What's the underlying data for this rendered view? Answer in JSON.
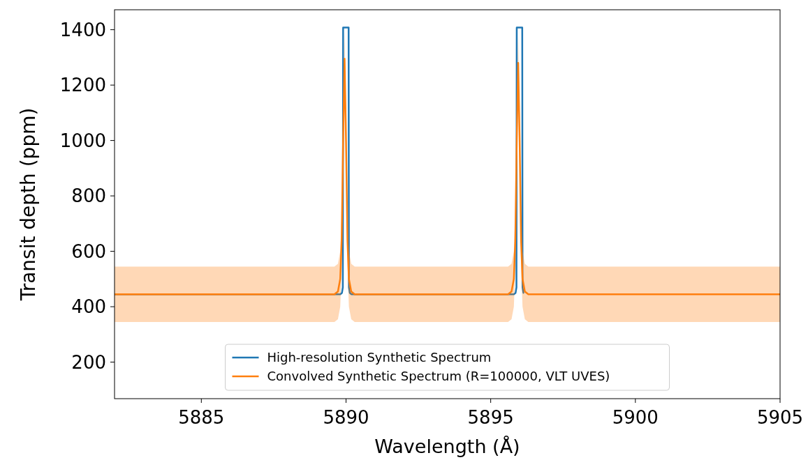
{
  "chart_data": {
    "type": "line",
    "xlabel": "Wavelength (Å)",
    "ylabel": "Transit depth (ppm)",
    "xlim": [
      5882,
      5905
    ],
    "ylim": [
      68,
      1472
    ],
    "xticks": [
      5885,
      5890,
      5895,
      5900,
      5905
    ],
    "yticks": [
      200,
      400,
      600,
      800,
      1000,
      1200,
      1400
    ],
    "grid": false,
    "legend": "bottom",
    "line_style": "solid",
    "series": [
      {
        "name": "High-resolution Synthetic Spectrum",
        "color": "#1f77b4",
        "x": [
          5882,
          5889.8,
          5889.86,
          5889.89,
          5889.9,
          5890.09,
          5890.1,
          5890.13,
          5890.19,
          5895.8,
          5895.86,
          5895.89,
          5895.9,
          5896.09,
          5896.1,
          5896.13
        ],
        "values": [
          445,
          445,
          450,
          470,
          1408,
          1408,
          470,
          450,
          445,
          445,
          450,
          470,
          1408,
          1408,
          470,
          450
        ]
      },
      {
        "name": "Convolved Synthetic Spectrum (R=100000, VLT UVES)",
        "color": "#ff7f0e",
        "x": [
          5882,
          5889.6,
          5889.72,
          5889.8,
          5889.85,
          5889.9,
          5889.95,
          5890.0,
          5890.05,
          5890.1,
          5890.18,
          5890.3,
          5895.6,
          5895.72,
          5895.8,
          5895.85,
          5895.9,
          5895.95,
          5896.0,
          5896.05,
          5896.1,
          5896.18,
          5896.3,
          5905
        ],
        "values": [
          445,
          445,
          455,
          500,
          640,
          1000,
          1295,
          1000,
          640,
          500,
          455,
          445,
          445,
          455,
          500,
          640,
          1000,
          1280,
          1000,
          640,
          500,
          455,
          445,
          445
        ],
        "lower": [
          345,
          345,
          355,
          400,
          540,
          900,
          1195,
          900,
          540,
          400,
          355,
          345,
          345,
          355,
          400,
          540,
          900,
          1180,
          900,
          540,
          400,
          355,
          345,
          345
        ],
        "upper": [
          545,
          545,
          555,
          600,
          740,
          1100,
          1395,
          1100,
          740,
          600,
          555,
          545,
          545,
          555,
          600,
          740,
          1100,
          1380,
          1100,
          740,
          600,
          555,
          545,
          545
        ]
      }
    ]
  }
}
